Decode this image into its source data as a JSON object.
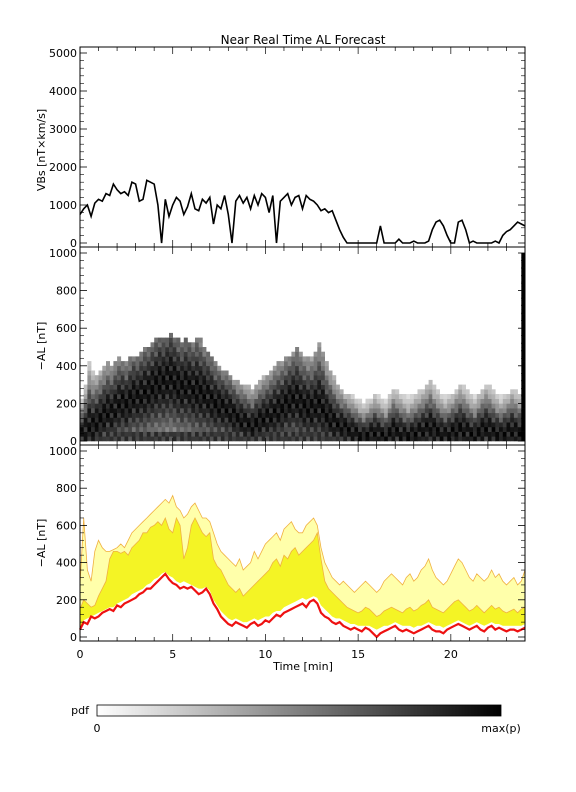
{
  "title": "Near Real Time AL Forecast",
  "colorbar": {
    "label": "pdf",
    "min_label": "0",
    "max_label": "max(p)",
    "from_color": "#ffffff",
    "to_color": "#000000"
  },
  "colors": {
    "median": "#ee1111",
    "band_outer": "#ffffaa",
    "band_inner": "#f4f425",
    "band_edge": "#f0b040",
    "trace": "#000000"
  },
  "chart_data": [
    {
      "id": "vbs",
      "type": "line",
      "ylabel": "VBs [nT×km/s]",
      "ylim": [
        0,
        5000
      ],
      "xlim": [
        0,
        24
      ],
      "yticks": [
        0,
        1000,
        2000,
        3000,
        4000,
        5000
      ],
      "x": [
        0,
        0.2,
        0.4,
        0.6,
        0.8,
        1.0,
        1.2,
        1.4,
        1.6,
        1.8,
        2.0,
        2.2,
        2.4,
        2.6,
        2.8,
        3.0,
        3.2,
        3.4,
        3.6,
        3.8,
        4.0,
        4.2,
        4.4,
        4.6,
        4.8,
        5.0,
        5.2,
        5.4,
        5.6,
        5.8,
        6.0,
        6.2,
        6.4,
        6.6,
        6.8,
        7.0,
        7.2,
        7.4,
        7.6,
        7.8,
        8.0,
        8.2,
        8.4,
        8.6,
        8.8,
        9.0,
        9.2,
        9.4,
        9.6,
        9.8,
        10.0,
        10.2,
        10.4,
        10.6,
        10.8,
        11.0,
        11.2,
        11.4,
        11.6,
        11.8,
        12.0,
        12.2,
        12.4,
        12.6,
        12.8,
        13.0,
        13.2,
        13.4,
        13.6,
        13.8,
        14.0,
        14.2,
        14.4,
        14.6,
        14.8,
        15.0,
        15.2,
        15.4,
        15.6,
        15.8,
        16.0,
        16.2,
        16.4,
        16.6,
        16.8,
        17.0,
        17.2,
        17.4,
        17.6,
        17.8,
        18.0,
        18.2,
        18.4,
        18.6,
        18.8,
        19.0,
        19.2,
        19.4,
        19.6,
        19.8,
        20.0,
        20.2,
        20.4,
        20.6,
        20.8,
        21.0,
        21.2,
        21.4,
        21.6,
        21.8,
        22.0,
        22.2,
        22.4,
        22.6,
        22.8,
        23.0,
        23.2,
        23.4,
        23.6,
        23.8,
        24.0
      ],
      "y": [
        750,
        900,
        1000,
        700,
        1050,
        1150,
        1100,
        1300,
        1250,
        1550,
        1400,
        1300,
        1350,
        1250,
        1600,
        1550,
        1100,
        1150,
        1650,
        1600,
        1550,
        1000,
        0,
        1150,
        700,
        1000,
        1200,
        1100,
        750,
        950,
        1300,
        900,
        850,
        1150,
        1050,
        1200,
        500,
        1000,
        900,
        1250,
        750,
        0,
        1100,
        1250,
        1050,
        1200,
        900,
        1250,
        1000,
        1300,
        1200,
        800,
        1250,
        0,
        1100,
        1200,
        1300,
        1000,
        1200,
        1250,
        900,
        1250,
        1150,
        1100,
        1000,
        850,
        900,
        800,
        850,
        600,
        350,
        150,
        0,
        0,
        0,
        0,
        0,
        0,
        0,
        0,
        0,
        450,
        0,
        0,
        0,
        0,
        100,
        0,
        0,
        0,
        50,
        0,
        0,
        0,
        50,
        350,
        550,
        600,
        450,
        200,
        0,
        0,
        550,
        600,
        350,
        0,
        50,
        0,
        0,
        0,
        0,
        0,
        50,
        0,
        200,
        300,
        350,
        450,
        550,
        500,
        450
      ]
    },
    {
      "id": "al_pdf",
      "type": "heatmap",
      "ylabel": "−AL [nT]",
      "ylim": [
        0,
        1000
      ],
      "xlim": [
        0,
        24
      ],
      "yticks": [
        0,
        200,
        400,
        600,
        800,
        1000
      ],
      "x": [
        0,
        0.2,
        0.4,
        0.6,
        0.8,
        1.0,
        1.2,
        1.4,
        1.6,
        1.8,
        2.0,
        2.2,
        2.4,
        2.6,
        2.8,
        3.0,
        3.2,
        3.4,
        3.6,
        3.8,
        4.0,
        4.2,
        4.4,
        4.6,
        4.8,
        5.0,
        5.2,
        5.4,
        5.6,
        5.8,
        6.0,
        6.2,
        6.4,
        6.6,
        6.8,
        7.0,
        7.2,
        7.4,
        7.6,
        7.8,
        8.0,
        8.2,
        8.4,
        8.6,
        8.8,
        9.0,
        9.2,
        9.4,
        9.6,
        9.8,
        10.0,
        10.2,
        10.4,
        10.6,
        10.8,
        11.0,
        11.2,
        11.4,
        11.6,
        11.8,
        12.0,
        12.2,
        12.4,
        12.6,
        12.8,
        13.0,
        13.2,
        13.4,
        13.6,
        13.8,
        14.0,
        14.2,
        14.4,
        14.6,
        14.8,
        15.0,
        15.2,
        15.4,
        15.6,
        15.8,
        16.0,
        16.2,
        16.4,
        16.6,
        16.8,
        17.0,
        17.2,
        17.4,
        17.6,
        17.8,
        18.0,
        18.2,
        18.4,
        18.6,
        18.8,
        19.0,
        19.2,
        19.4,
        19.6,
        19.8,
        20.0,
        20.2,
        20.4,
        20.6,
        20.8,
        21.0,
        21.2,
        21.4,
        21.6,
        21.8,
        22.0,
        22.2,
        22.4,
        22.6,
        22.8,
        23.0,
        23.2,
        23.4,
        23.6,
        23.8,
        24.0
      ],
      "center": [
        40,
        60,
        90,
        80,
        100,
        120,
        140,
        160,
        150,
        180,
        200,
        210,
        190,
        220,
        240,
        230,
        250,
        260,
        270,
        290,
        300,
        320,
        310,
        330,
        340,
        320,
        300,
        280,
        300,
        290,
        270,
        280,
        260,
        250,
        240,
        220,
        200,
        190,
        180,
        170,
        160,
        140,
        120,
        110,
        100,
        90,
        80,
        100,
        110,
        120,
        130,
        140,
        160,
        170,
        180,
        200,
        210,
        220,
        230,
        200,
        190,
        180,
        170,
        190,
        200,
        180,
        140,
        120,
        100,
        90,
        80,
        70,
        60,
        50,
        40,
        30,
        20,
        30,
        40,
        50,
        40,
        30,
        20,
        40,
        60,
        50,
        40,
        30,
        20,
        30,
        40,
        50,
        60,
        70,
        80,
        60,
        50,
        40,
        30,
        40,
        50,
        60,
        70,
        60,
        50,
        40,
        30,
        50,
        60,
        70,
        60,
        50,
        40,
        30,
        40,
        50,
        60,
        50,
        40
      ],
      "spread": [
        220,
        300,
        420,
        380,
        360,
        380,
        400,
        420,
        400,
        430,
        440,
        430,
        420,
        440,
        460,
        450,
        470,
        500,
        490,
        520,
        540,
        560,
        550,
        560,
        580,
        560,
        540,
        520,
        540,
        530,
        520,
        560,
        540,
        500,
        480,
        460,
        420,
        400,
        380,
        370,
        350,
        330,
        320,
        310,
        300,
        290,
        280,
        300,
        320,
        340,
        360,
        380,
        400,
        420,
        430,
        440,
        460,
        480,
        500,
        480,
        460,
        440,
        460,
        480,
        520,
        480,
        420,
        380,
        340,
        300,
        280,
        260,
        250,
        240,
        230,
        220,
        210,
        220,
        230,
        250,
        240,
        230,
        220,
        250,
        280,
        270,
        260,
        250,
        240,
        250,
        260,
        270,
        280,
        300,
        320,
        290,
        270,
        250,
        240,
        250,
        260,
        280,
        300,
        290,
        270,
        250,
        240,
        260,
        280,
        300,
        290,
        270,
        250,
        240,
        250,
        260,
        280,
        270,
        260
      ]
    },
    {
      "id": "al_forecast",
      "type": "area",
      "ylabel": "−AL [nT]",
      "xlabel": "Time [min]",
      "ylim": [
        0,
        1000
      ],
      "xlim": [
        0,
        24
      ],
      "yticks": [
        0,
        200,
        400,
        600,
        800,
        1000
      ],
      "xticks": [
        0,
        5,
        10,
        15,
        20
      ],
      "x": [
        0,
        0.2,
        0.4,
        0.6,
        0.8,
        1.0,
        1.2,
        1.4,
        1.6,
        1.8,
        2.0,
        2.2,
        2.4,
        2.6,
        2.8,
        3.0,
        3.2,
        3.4,
        3.6,
        3.8,
        4.0,
        4.2,
        4.4,
        4.6,
        4.8,
        5.0,
        5.2,
        5.4,
        5.6,
        5.8,
        6.0,
        6.2,
        6.4,
        6.6,
        6.8,
        7.0,
        7.2,
        7.4,
        7.6,
        7.8,
        8.0,
        8.2,
        8.4,
        8.6,
        8.8,
        9.0,
        9.2,
        9.4,
        9.6,
        9.8,
        10.0,
        10.2,
        10.4,
        10.6,
        10.8,
        11.0,
        11.2,
        11.4,
        11.6,
        11.8,
        12.0,
        12.2,
        12.4,
        12.6,
        12.8,
        13.0,
        13.2,
        13.4,
        13.6,
        13.8,
        14.0,
        14.2,
        14.4,
        14.6,
        14.8,
        15.0,
        15.2,
        15.4,
        15.6,
        15.8,
        16.0,
        16.2,
        16.4,
        16.6,
        16.8,
        17.0,
        17.2,
        17.4,
        17.6,
        17.8,
        18.0,
        18.2,
        18.4,
        18.6,
        18.8,
        19.0,
        19.2,
        19.4,
        19.6,
        19.8,
        20.0,
        20.2,
        20.4,
        20.6,
        20.8,
        21.0,
        21.2,
        21.4,
        21.6,
        21.8,
        22.0,
        22.2,
        22.4,
        22.6,
        22.8,
        23.0,
        23.2,
        23.4,
        23.6,
        23.8,
        24.0
      ],
      "median": [
        40,
        80,
        70,
        110,
        100,
        110,
        130,
        140,
        150,
        140,
        170,
        160,
        180,
        190,
        200,
        210,
        230,
        240,
        260,
        260,
        280,
        300,
        320,
        340,
        310,
        290,
        280,
        260,
        270,
        260,
        270,
        250,
        230,
        240,
        260,
        230,
        180,
        150,
        110,
        90,
        70,
        60,
        80,
        70,
        60,
        50,
        70,
        80,
        60,
        70,
        90,
        80,
        100,
        120,
        110,
        130,
        140,
        150,
        160,
        170,
        180,
        160,
        190,
        200,
        180,
        130,
        110,
        100,
        80,
        70,
        80,
        60,
        50,
        40,
        50,
        40,
        30,
        50,
        40,
        20,
        0,
        20,
        30,
        40,
        50,
        60,
        40,
        30,
        40,
        30,
        20,
        30,
        40,
        50,
        60,
        40,
        30,
        30,
        20,
        40,
        50,
        60,
        70,
        60,
        50,
        40,
        50,
        60,
        40,
        30,
        50,
        60,
        40,
        50,
        40,
        30,
        40,
        40,
        30,
        40,
        50
      ],
      "inner_low": [
        50,
        90,
        100,
        110,
        120,
        130,
        140,
        150,
        160,
        160,
        180,
        190,
        200,
        210,
        230,
        240,
        250,
        260,
        280,
        290,
        310,
        320,
        340,
        350,
        330,
        320,
        300,
        290,
        300,
        290,
        280,
        270,
        260,
        260,
        270,
        250,
        200,
        170,
        140,
        120,
        100,
        90,
        100,
        90,
        80,
        80,
        90,
        100,
        90,
        100,
        110,
        110,
        130,
        140,
        140,
        160,
        170,
        180,
        190,
        200,
        210,
        200,
        210,
        220,
        210,
        170,
        150,
        130,
        110,
        100,
        100,
        90,
        80,
        70,
        70,
        60,
        60,
        60,
        60,
        50,
        40,
        50,
        60,
        60,
        70,
        80,
        70,
        60,
        60,
        60,
        50,
        60,
        60,
        70,
        80,
        70,
        60,
        60,
        50,
        60,
        70,
        80,
        90,
        80,
        70,
        60,
        70,
        80,
        70,
        60,
        70,
        80,
        70,
        70,
        60,
        60,
        60,
        60,
        60,
        60,
        70
      ],
      "inner_high": [
        150,
        200,
        180,
        160,
        170,
        220,
        260,
        300,
        420,
        460,
        460,
        450,
        460,
        440,
        480,
        500,
        520,
        560,
        560,
        590,
        600,
        620,
        600,
        640,
        580,
        560,
        640,
        600,
        420,
        480,
        600,
        640,
        600,
        560,
        540,
        560,
        420,
        380,
        360,
        320,
        280,
        260,
        240,
        260,
        220,
        240,
        260,
        280,
        300,
        320,
        340,
        360,
        400,
        420,
        380,
        440,
        420,
        460,
        480,
        440,
        460,
        480,
        500,
        520,
        560,
        420,
        300,
        260,
        240,
        220,
        200,
        180,
        160,
        150,
        140,
        130,
        140,
        160,
        150,
        130,
        110,
        120,
        140,
        150,
        160,
        150,
        140,
        130,
        150,
        160,
        140,
        150,
        170,
        180,
        200,
        160,
        150,
        140,
        130,
        150,
        170,
        190,
        200,
        180,
        160,
        140,
        150,
        170,
        150,
        130,
        150,
        170,
        150,
        160,
        140,
        130,
        140,
        150,
        130,
        150,
        160
      ],
      "outer_high": [
        280,
        640,
        360,
        300,
        460,
        520,
        480,
        460,
        460,
        470,
        480,
        500,
        480,
        520,
        560,
        580,
        600,
        620,
        640,
        660,
        680,
        700,
        720,
        740,
        720,
        760,
        700,
        680,
        640,
        660,
        700,
        720,
        680,
        640,
        640,
        620,
        560,
        500,
        460,
        440,
        420,
        400,
        380,
        420,
        360,
        380,
        400,
        460,
        420,
        460,
        500,
        520,
        540,
        560,
        520,
        580,
        600,
        620,
        580,
        560,
        560,
        600,
        620,
        640,
        600,
        480,
        400,
        360,
        320,
        300,
        280,
        300,
        280,
        260,
        240,
        260,
        280,
        300,
        280,
        260,
        240,
        260,
        300,
        320,
        340,
        320,
        300,
        280,
        320,
        340,
        300,
        320,
        360,
        380,
        420,
        360,
        320,
        300,
        280,
        300,
        340,
        380,
        420,
        400,
        360,
        320,
        300,
        340,
        320,
        300,
        320,
        360,
        320,
        340,
        300,
        280,
        300,
        320,
        280,
        300,
        360
      ]
    }
  ]
}
